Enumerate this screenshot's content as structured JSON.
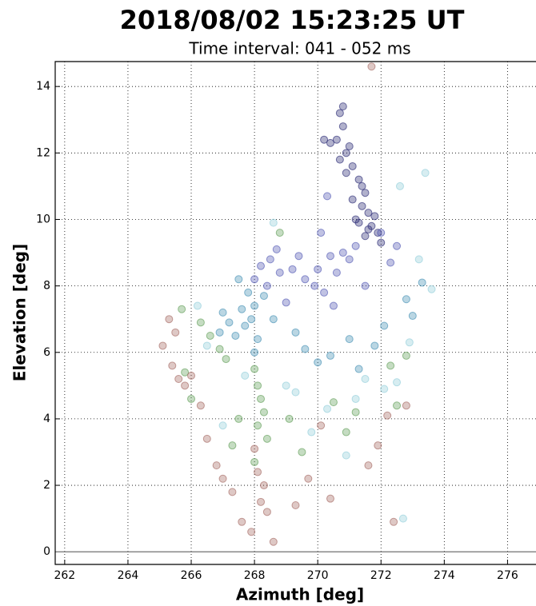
{
  "chart_data": {
    "type": "scatter",
    "title": "2018/08/02    15:23:25 UT",
    "subtitle": "Time interval:  041 - 052 ms",
    "x_label": "Azimuth [deg]",
    "y_label": "Elevation [deg]",
    "xlim": [
      261.7,
      276.9
    ],
    "ylim": [
      -0.38,
      14.75
    ],
    "xticks": [
      262,
      264,
      266,
      268,
      270,
      272,
      274,
      276
    ],
    "yticks": [
      0,
      2,
      4,
      6,
      8,
      10,
      12,
      14
    ],
    "grid": true,
    "hline": 0,
    "series": [
      {
        "color": "#1f1f6e",
        "x": [
          270.7,
          270.8,
          270.6,
          270.9,
          270.7,
          271.1,
          271.3,
          271.5,
          271.4,
          271.2,
          271.7,
          271.5,
          271.9,
          270.4,
          271.0,
          271.6,
          270.8,
          271.3,
          271.8,
          270.9,
          271.1,
          272.0,
          270.2,
          271.4,
          271.6
        ],
        "values": [
          13.2,
          12.8,
          12.4,
          12.0,
          11.8,
          11.6,
          11.2,
          10.8,
          10.4,
          10.0,
          9.8,
          9.5,
          9.6,
          12.3,
          12.2,
          10.2,
          13.4,
          9.9,
          10.1,
          11.4,
          10.6,
          9.3,
          12.4,
          11.0,
          9.7
        ]
      },
      {
        "color": "#4a50b0",
        "x": [
          268.2,
          268.5,
          268.8,
          269.2,
          269.6,
          270.0,
          270.4,
          270.8,
          271.2,
          269.9,
          268.0,
          268.4,
          270.2,
          270.6,
          271.0,
          272.0,
          269.4,
          268.7,
          270.3,
          272.3,
          270.1,
          269.0,
          271.5,
          272.5,
          270.5
        ],
        "values": [
          8.6,
          8.8,
          8.4,
          8.5,
          8.2,
          8.5,
          8.9,
          9.0,
          9.2,
          8.0,
          8.2,
          8.0,
          7.8,
          8.4,
          8.8,
          9.6,
          8.9,
          9.1,
          10.7,
          8.7,
          9.6,
          7.5,
          8.0,
          9.2,
          7.4
        ]
      },
      {
        "color": "#3a8ab0",
        "x": [
          267.8,
          268.0,
          267.9,
          267.7,
          268.1,
          267.4,
          267.2,
          267.6,
          268.0,
          266.9,
          268.3,
          267.5,
          271.0,
          270.4,
          271.8,
          272.8,
          273.3,
          272.1,
          269.6,
          270.0,
          273.0,
          267.0,
          268.6,
          269.3,
          271.3
        ],
        "values": [
          7.8,
          7.4,
          7.0,
          6.8,
          6.4,
          6.5,
          6.9,
          7.3,
          6.0,
          6.6,
          7.7,
          8.2,
          6.4,
          5.9,
          6.2,
          7.6,
          8.1,
          6.8,
          6.1,
          5.7,
          7.1,
          7.2,
          7.0,
          6.6,
          5.5
        ]
      },
      {
        "color": "#8ccbd8",
        "x": [
          272.6,
          273.4,
          269.3,
          270.3,
          272.5,
          271.5,
          266.5,
          273.2,
          269.8,
          272.1,
          267.0,
          272.7,
          268.6,
          270.9,
          273.6,
          266.2,
          269.0,
          271.2,
          267.7,
          272.9
        ],
        "values": [
          11.0,
          11.4,
          4.8,
          4.3,
          5.1,
          5.2,
          6.2,
          8.8,
          3.6,
          4.9,
          3.8,
          1.0,
          9.9,
          2.9,
          7.9,
          7.4,
          5.0,
          4.6,
          5.3,
          6.3
        ]
      },
      {
        "color": "#5a9a50",
        "x": [
          266.6,
          266.9,
          267.1,
          268.0,
          268.1,
          268.2,
          268.3,
          268.1,
          268.4,
          266.3,
          265.7,
          267.5,
          270.5,
          271.2,
          272.3,
          272.5,
          268.8,
          267.3,
          269.1,
          266.0,
          270.9,
          272.8,
          268.0,
          265.8,
          269.5
        ],
        "values": [
          6.5,
          6.1,
          5.8,
          5.5,
          5.0,
          4.6,
          4.2,
          3.8,
          3.4,
          6.9,
          7.3,
          4.0,
          4.5,
          4.2,
          5.6,
          4.4,
          9.6,
          3.2,
          4.0,
          4.6,
          3.6,
          5.9,
          2.7,
          5.4,
          3.0
        ]
      },
      {
        "color": "#a0605a",
        "x": [
          265.3,
          265.5,
          265.6,
          265.8,
          266.0,
          265.4,
          266.3,
          266.8,
          267.0,
          267.3,
          268.1,
          268.3,
          268.2,
          268.4,
          268.0,
          267.9,
          268.6,
          269.7,
          270.4,
          271.9,
          272.2,
          272.8,
          271.6,
          266.5,
          267.6,
          265.1,
          269.3,
          272.4,
          271.7,
          270.1
        ],
        "values": [
          7.0,
          6.6,
          5.2,
          5.0,
          5.3,
          5.6,
          4.4,
          2.6,
          2.2,
          1.8,
          2.4,
          2.0,
          1.5,
          1.2,
          3.1,
          0.6,
          0.3,
          2.2,
          1.6,
          3.2,
          4.1,
          4.4,
          2.6,
          3.4,
          0.9,
          6.2,
          1.4,
          0.9,
          14.6,
          3.8
        ]
      }
    ]
  }
}
